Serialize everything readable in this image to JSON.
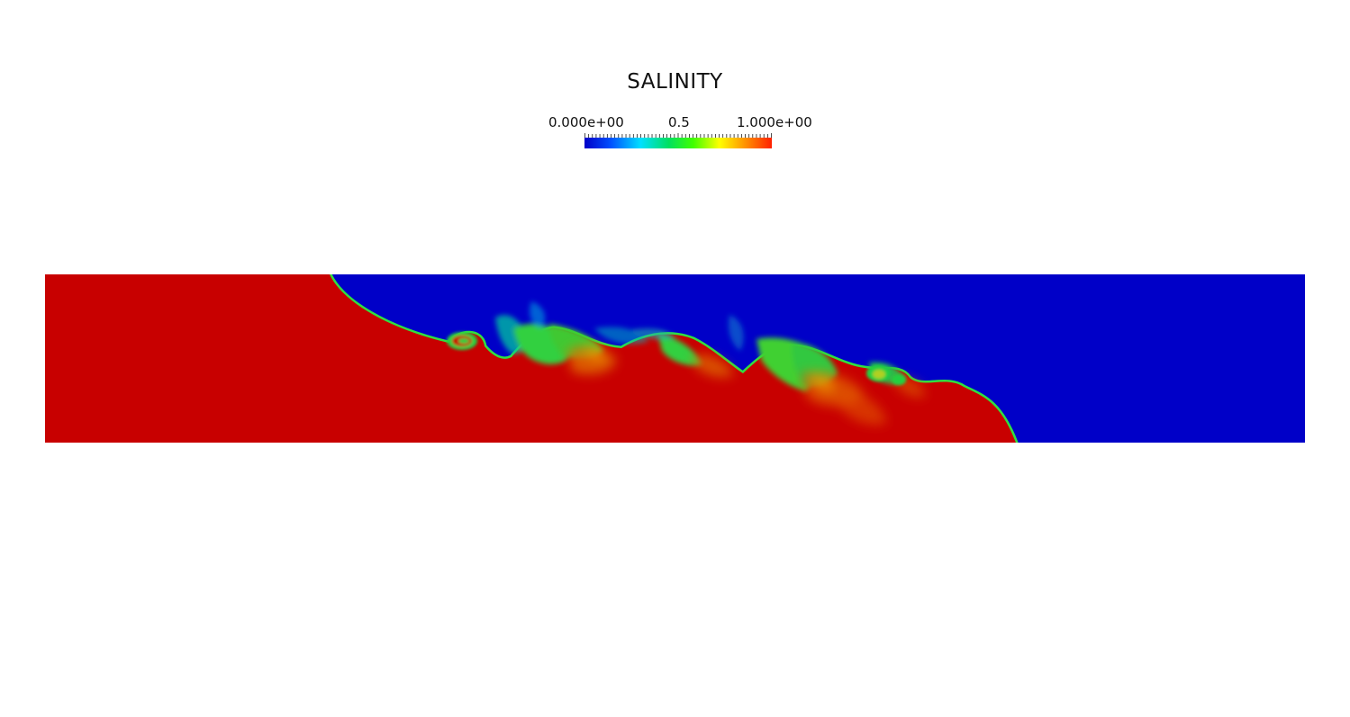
{
  "legend": {
    "title": "SALINITY",
    "min_label": "0.000e+00",
    "mid_label": "0.5",
    "max_label": "1.000e+00",
    "range": [
      0,
      1
    ],
    "colormap": [
      "#0000c8",
      "#0050ff",
      "#00e0ff",
      "#00e060",
      "#40ff00",
      "#ffff00",
      "#ff9000",
      "#ff2000"
    ]
  },
  "field": {
    "colors": {
      "low_salinity": "#0000c8",
      "high_salinity": "#c80000",
      "mixed": "#20d040"
    }
  }
}
